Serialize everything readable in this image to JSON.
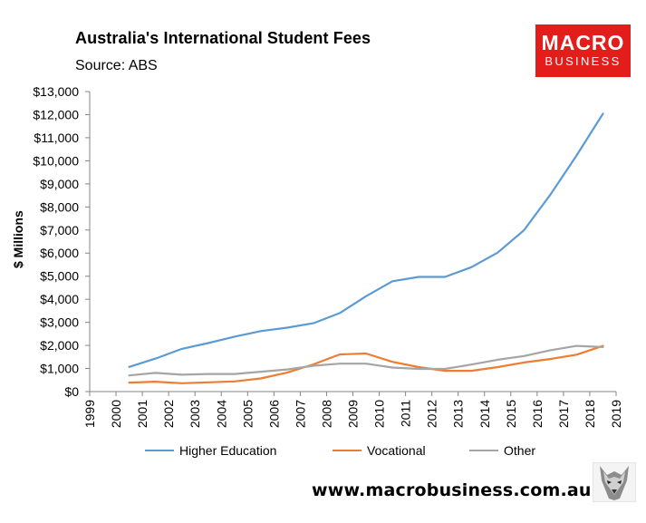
{
  "header": {
    "title": "Australia's International Student Fees",
    "source": "Source: ABS"
  },
  "logo": {
    "line1": "MACRO",
    "line2": "BUSINESS",
    "bg_color": "#e31d1a"
  },
  "footer": {
    "url": "www.macrobusiness.com.au"
  },
  "chart_data": {
    "type": "line",
    "title": "Australia's International Student Fees",
    "subtitle": "Source: ABS",
    "ylabel": "$ Millions",
    "xlabel": "",
    "ylim": [
      0,
      13000
    ],
    "xlim": [
      1999,
      2019
    ],
    "grid": false,
    "legend_position": "bottom",
    "x_tick_labels": [
      "1999",
      "2000",
      "2001",
      "2002",
      "2003",
      "2004",
      "2005",
      "2006",
      "2007",
      "2008",
      "2009",
      "2010",
      "2011",
      "2012",
      "2013",
      "2014",
      "2015",
      "2016",
      "2017",
      "2018",
      "2019"
    ],
    "y_tick_labels": [
      "$0",
      "$1,000",
      "$2,000",
      "$3,000",
      "$4,000",
      "$5,000",
      "$6,000",
      "$7,000",
      "$8,000",
      "$9,000",
      "$10,000",
      "$11,000",
      "$12,000",
      "$13,000"
    ],
    "x": [
      2000.5,
      2001.5,
      2002.5,
      2003.5,
      2004.5,
      2005.5,
      2006.5,
      2007.5,
      2008.5,
      2009.5,
      2010.5,
      2011.5,
      2012.5,
      2013.5,
      2014.5,
      2015.5,
      2016.5,
      2017.5,
      2018.5
    ],
    "series": [
      {
        "name": "Higher Education",
        "color": "#5b9bd5",
        "values": [
          1070,
          1430,
          1850,
          2100,
          2380,
          2620,
          2770,
          2960,
          3400,
          4130,
          4780,
          4970,
          4970,
          5390,
          6020,
          6990,
          8530,
          10230,
          12040
        ]
      },
      {
        "name": "Vocational",
        "color": "#ed7d31",
        "values": [
          390,
          430,
          360,
          400,
          440,
          570,
          820,
          1180,
          1610,
          1650,
          1290,
          1060,
          900,
          900,
          1060,
          1260,
          1410,
          1600,
          1980
        ]
      },
      {
        "name": "Other",
        "color": "#a5a5a5",
        "values": [
          700,
          810,
          730,
          760,
          760,
          860,
          960,
          1120,
          1210,
          1210,
          1040,
          980,
          980,
          1170,
          1380,
          1540,
          1790,
          1980,
          1930
        ]
      }
    ]
  }
}
